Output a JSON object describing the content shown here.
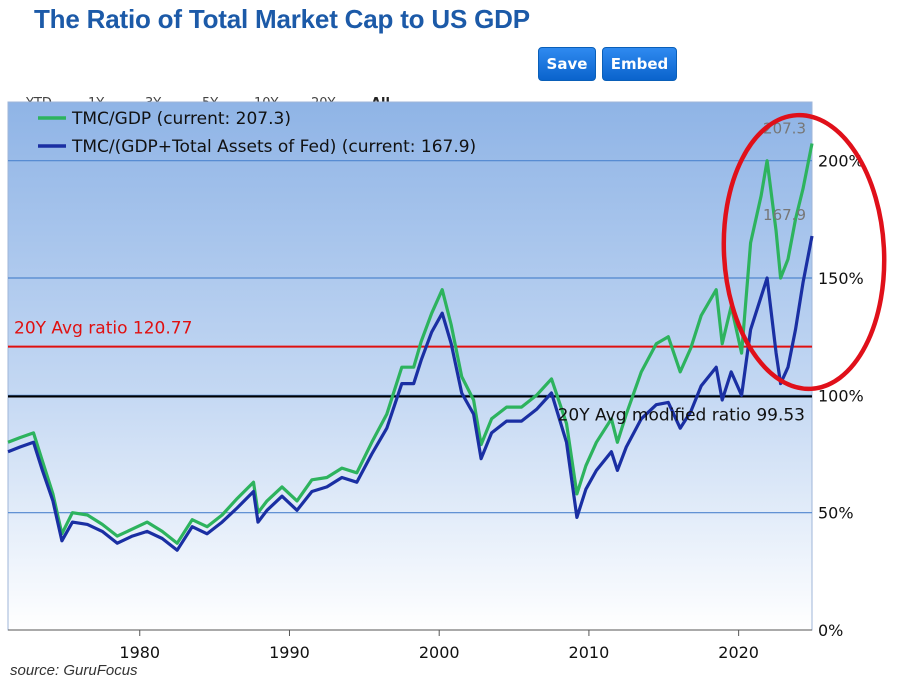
{
  "header": {
    "title": "The Ratio of Total Market Cap to US GDP",
    "ranges": [
      "YTD",
      "1Y",
      "3Y",
      "5Y",
      "10Y",
      "20Y",
      "All"
    ],
    "active_range": "All",
    "save_label": "Save",
    "embed_label": "Embed"
  },
  "source": "source: GuruFocus",
  "colors": {
    "tmc_gdp": "#2db35e",
    "tmc_gdp_fed": "#1a2fa3",
    "avg_20y": "#e01010",
    "avg_modified": "#000000",
    "highlight_ellipse": "#e0101a",
    "accent": "#1c5aa8"
  },
  "chart_data": {
    "type": "line",
    "x_axis": {
      "ticks": [
        1980,
        1990,
        2000,
        2010,
        2020
      ],
      "range": [
        1971.2,
        2024.9
      ]
    },
    "y_axis": {
      "ticks": [
        0,
        50,
        100,
        150,
        200
      ],
      "tick_labels": [
        "0%",
        "50%",
        "100%",
        "150%",
        "200%"
      ],
      "range": [
        0,
        225
      ]
    },
    "grid": true,
    "legend": "top-left",
    "series": [
      {
        "name": "TMC/GDP (current: 207.3)",
        "current": 207.3,
        "points": [
          [
            1971.2,
            80
          ],
          [
            1972,
            82
          ],
          [
            1972.9,
            84
          ],
          [
            1973.5,
            72
          ],
          [
            1974.2,
            58
          ],
          [
            1974.8,
            41
          ],
          [
            1975.5,
            50
          ],
          [
            1976.5,
            49
          ],
          [
            1977.5,
            45
          ],
          [
            1978.5,
            40
          ],
          [
            1979.5,
            43
          ],
          [
            1980.5,
            46
          ],
          [
            1981.5,
            42
          ],
          [
            1982.5,
            37
          ],
          [
            1983.5,
            47
          ],
          [
            1984.5,
            44
          ],
          [
            1985.5,
            49
          ],
          [
            1986.5,
            56
          ],
          [
            1987.6,
            63
          ],
          [
            1987.9,
            50
          ],
          [
            1988.5,
            55
          ],
          [
            1989.5,
            61
          ],
          [
            1990.5,
            55
          ],
          [
            1991.5,
            64
          ],
          [
            1992.5,
            65
          ],
          [
            1993.5,
            69
          ],
          [
            1994.5,
            67
          ],
          [
            1995.5,
            80
          ],
          [
            1996.5,
            92
          ],
          [
            1997.5,
            112
          ],
          [
            1998.3,
            112
          ],
          [
            1998.8,
            123
          ],
          [
            1999.5,
            135
          ],
          [
            2000.2,
            145
          ],
          [
            2000.8,
            130
          ],
          [
            2001.5,
            108
          ],
          [
            2002.3,
            98
          ],
          [
            2002.8,
            79
          ],
          [
            2003.5,
            90
          ],
          [
            2004.5,
            95
          ],
          [
            2005.5,
            95
          ],
          [
            2006.5,
            100
          ],
          [
            2007.5,
            107
          ],
          [
            2008.5,
            88
          ],
          [
            2009.2,
            58
          ],
          [
            2009.8,
            70
          ],
          [
            2010.5,
            80
          ],
          [
            2011.5,
            90
          ],
          [
            2011.9,
            80
          ],
          [
            2012.5,
            92
          ],
          [
            2013.5,
            110
          ],
          [
            2014.5,
            122
          ],
          [
            2015.3,
            125
          ],
          [
            2016.1,
            110
          ],
          [
            2016.8,
            120
          ],
          [
            2017.5,
            134
          ],
          [
            2018.5,
            145
          ],
          [
            2018.9,
            122
          ],
          [
            2019.5,
            138
          ],
          [
            2020.2,
            118
          ],
          [
            2020.8,
            165
          ],
          [
            2021.5,
            185
          ],
          [
            2021.9,
            200
          ],
          [
            2022.5,
            170
          ],
          [
            2022.8,
            150
          ],
          [
            2023.3,
            158
          ],
          [
            2023.8,
            175
          ],
          [
            2024.3,
            188
          ],
          [
            2024.9,
            207.3
          ]
        ]
      },
      {
        "name": "TMC/(GDP+Total Assets of Fed) (current: 167.9)",
        "current": 167.9,
        "points": [
          [
            1971.2,
            76
          ],
          [
            1972,
            78
          ],
          [
            1972.9,
            80
          ],
          [
            1973.5,
            68
          ],
          [
            1974.2,
            55
          ],
          [
            1974.8,
            38
          ],
          [
            1975.5,
            46
          ],
          [
            1976.5,
            45
          ],
          [
            1977.5,
            42
          ],
          [
            1978.5,
            37
          ],
          [
            1979.5,
            40
          ],
          [
            1980.5,
            42
          ],
          [
            1981.5,
            39
          ],
          [
            1982.5,
            34
          ],
          [
            1983.5,
            44
          ],
          [
            1984.5,
            41
          ],
          [
            1985.5,
            46
          ],
          [
            1986.5,
            52
          ],
          [
            1987.6,
            59
          ],
          [
            1987.9,
            46
          ],
          [
            1988.5,
            51
          ],
          [
            1989.5,
            57
          ],
          [
            1990.5,
            51
          ],
          [
            1991.5,
            59
          ],
          [
            1992.5,
            61
          ],
          [
            1993.5,
            65
          ],
          [
            1994.5,
            63
          ],
          [
            1995.5,
            75
          ],
          [
            1996.5,
            86
          ],
          [
            1997.5,
            105
          ],
          [
            1998.3,
            105
          ],
          [
            1998.8,
            115
          ],
          [
            1999.5,
            127
          ],
          [
            2000.2,
            135
          ],
          [
            2000.8,
            122
          ],
          [
            2001.5,
            101
          ],
          [
            2002.3,
            92
          ],
          [
            2002.8,
            73
          ],
          [
            2003.5,
            84
          ],
          [
            2004.5,
            89
          ],
          [
            2005.5,
            89
          ],
          [
            2006.5,
            94
          ],
          [
            2007.5,
            101
          ],
          [
            2008.5,
            80
          ],
          [
            2009.2,
            48
          ],
          [
            2009.8,
            60
          ],
          [
            2010.5,
            68
          ],
          [
            2011.5,
            76
          ],
          [
            2011.9,
            68
          ],
          [
            2012.5,
            78
          ],
          [
            2013.5,
            90
          ],
          [
            2014.5,
            96
          ],
          [
            2015.3,
            97
          ],
          [
            2016.1,
            86
          ],
          [
            2016.8,
            93
          ],
          [
            2017.5,
            104
          ],
          [
            2018.5,
            112
          ],
          [
            2018.9,
            98
          ],
          [
            2019.5,
            110
          ],
          [
            2020.2,
            100
          ],
          [
            2020.8,
            128
          ],
          [
            2021.5,
            142
          ],
          [
            2021.9,
            150
          ],
          [
            2022.5,
            118
          ],
          [
            2022.8,
            105
          ],
          [
            2023.3,
            112
          ],
          [
            2023.8,
            128
          ],
          [
            2024.3,
            148
          ],
          [
            2024.9,
            167.9
          ]
        ]
      }
    ],
    "reference_lines": [
      {
        "label": "20Y Avg ratio 120.77",
        "value": 120.77
      },
      {
        "label": "20Y Avg modified ratio 99.53",
        "value": 99.53
      }
    ],
    "annotations": [
      "207.3",
      "167.9"
    ]
  }
}
